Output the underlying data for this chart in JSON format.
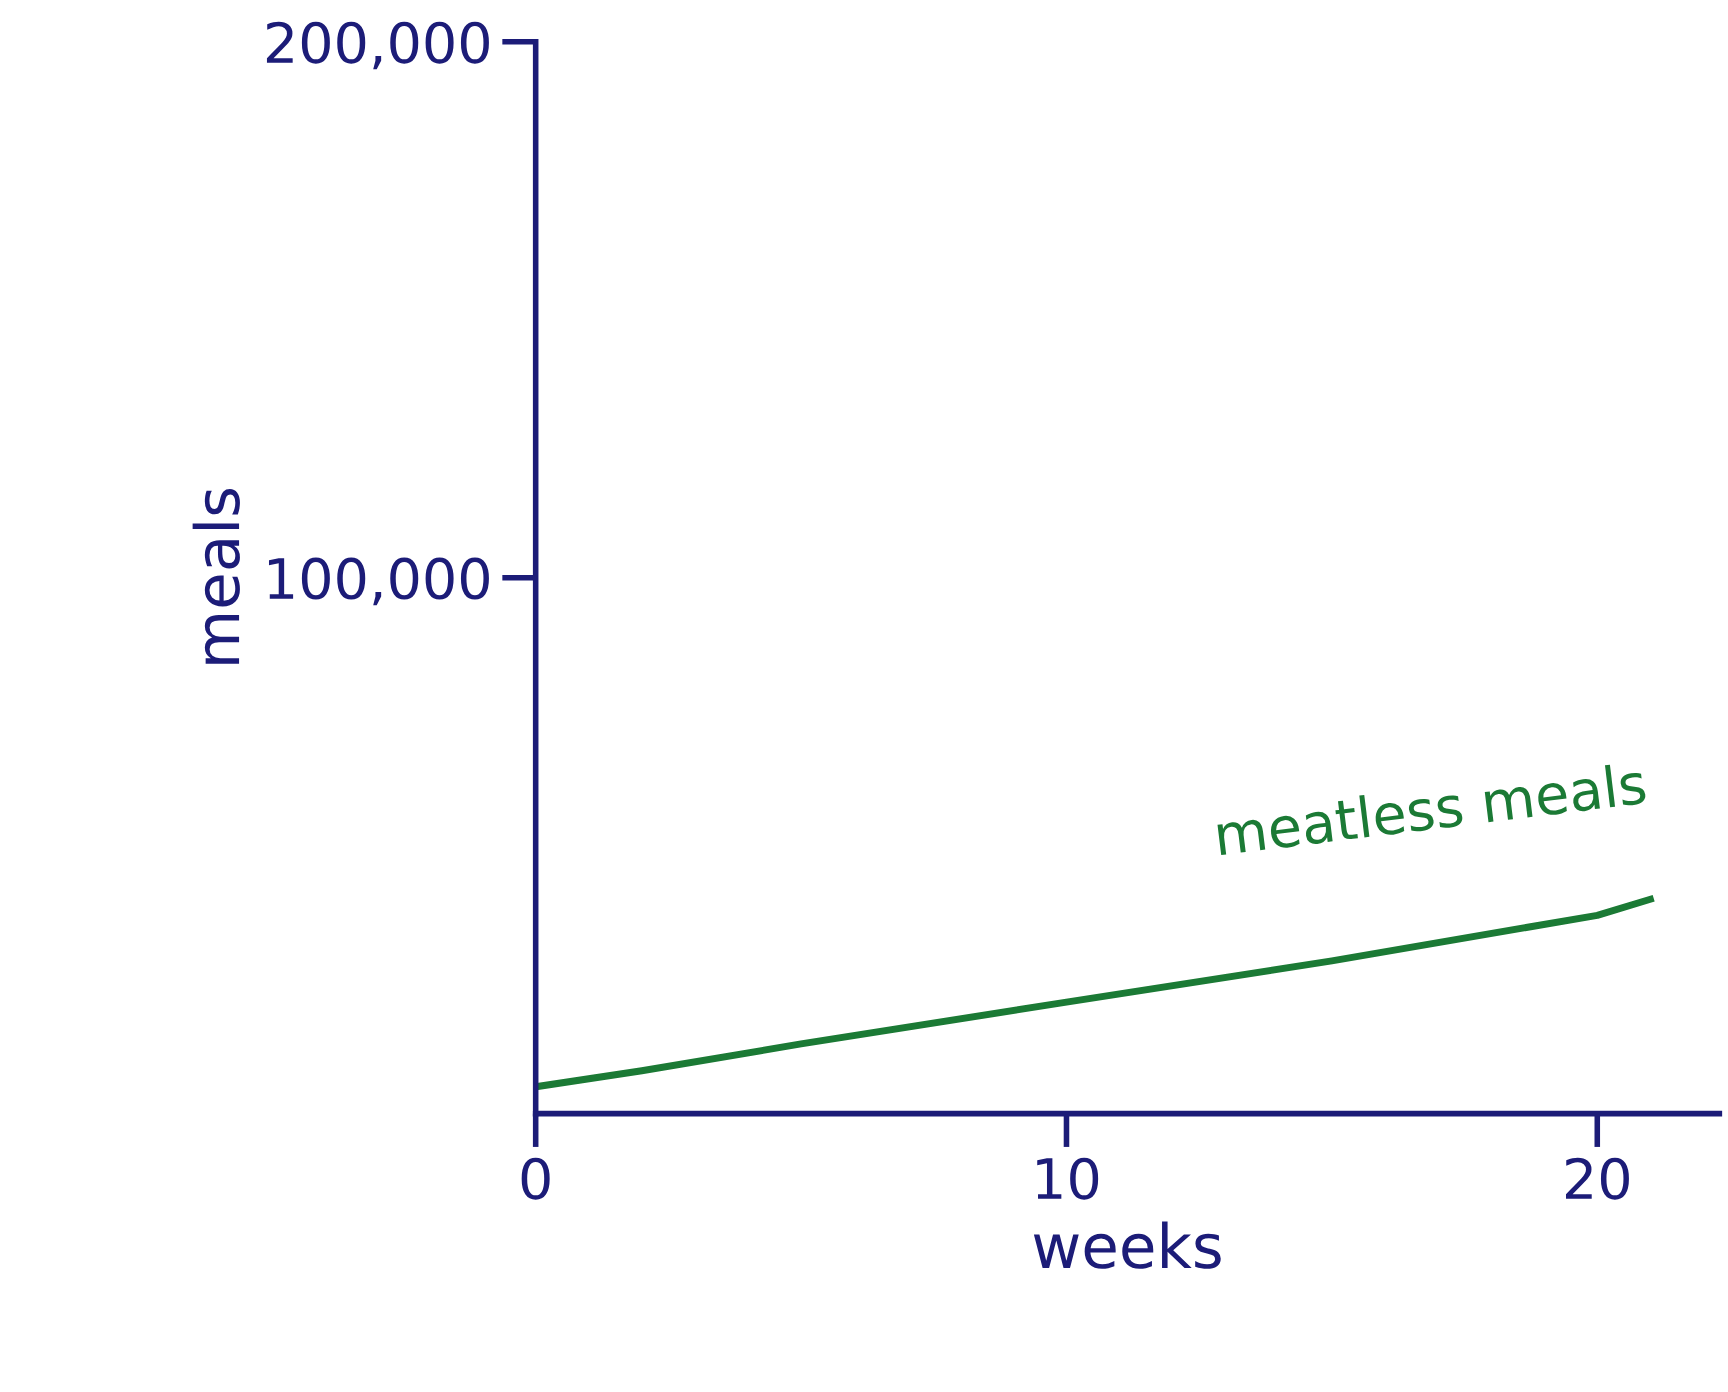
{
  "chart_data": {
    "type": "line",
    "xlabel": "weeks",
    "ylabel": "meals",
    "series": [
      {
        "name": "meatless meals",
        "color": "#1b7a35",
        "x": [
          0,
          2,
          5,
          10,
          15,
          20,
          21
        ],
        "values": [
          5000,
          8000,
          13000,
          20800,
          28500,
          37000,
          40000
        ]
      }
    ],
    "xlim": [
      0,
      22.3
    ],
    "ylim": [
      0,
      200000
    ],
    "xticks": [
      0,
      10,
      20
    ],
    "yticks": [
      {
        "value": 100000,
        "label": "100,000"
      },
      {
        "value": 200000,
        "label": "200,000"
      }
    ],
    "grid": false,
    "legend": false,
    "marker": "none",
    "line_style": "solid"
  }
}
